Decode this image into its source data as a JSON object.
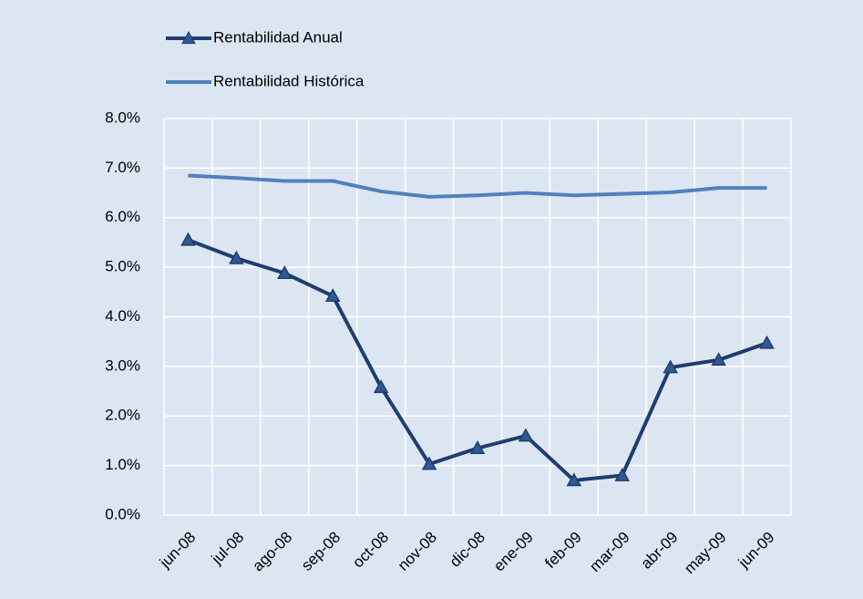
{
  "chart_data": {
    "type": "line",
    "categories": [
      "jun-08",
      "jul-08",
      "ago-08",
      "sep-08",
      "oct-08",
      "nov-08",
      "dic-08",
      "ene-09",
      "feb-09",
      "mar-09",
      "abr-09",
      "may-09",
      "jun-09"
    ],
    "series": [
      {
        "name": "Rentabilidad Anual",
        "color": "#1f3d6d",
        "marker": "triangle",
        "values": [
          5.55,
          5.18,
          4.88,
          4.42,
          2.58,
          1.03,
          1.35,
          1.6,
          0.7,
          0.8,
          2.98,
          3.13,
          3.47
        ]
      },
      {
        "name": "Rentabilidad Histórica",
        "color": "#4f81bd",
        "values": [
          6.85,
          6.8,
          6.74,
          6.74,
          6.53,
          6.42,
          6.45,
          6.5,
          6.45,
          6.48,
          6.51,
          6.6,
          6.6
        ]
      }
    ],
    "ylim": [
      0,
      8
    ],
    "yticks": [
      {
        "value": 0,
        "label": "0.0%"
      },
      {
        "value": 1,
        "label": "1.0%"
      },
      {
        "value": 2,
        "label": "2.0%"
      },
      {
        "value": 3,
        "label": "3.0%"
      },
      {
        "value": 4,
        "label": "4.0%"
      },
      {
        "value": 5,
        "label": "5.0%"
      },
      {
        "value": 6,
        "label": "6.0%"
      },
      {
        "value": 7,
        "label": "7.0%"
      },
      {
        "value": 8,
        "label": "8.0%"
      }
    ],
    "grid": true,
    "legend": "top-left",
    "background": "#dce6f2"
  }
}
